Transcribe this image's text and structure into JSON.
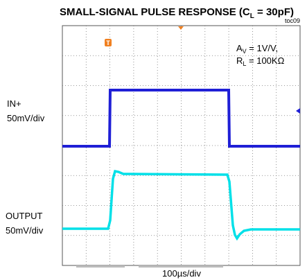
{
  "title": {
    "prefix": "SMALL-SIGNAL PULSE RESPONSE (C",
    "sub": "L",
    "suffix": " = 30pF)"
  },
  "figure_id": "toc09",
  "annotation": {
    "line1": {
      "main": "A",
      "sub": "V",
      "rest": " = 1V/V,"
    },
    "line2": {
      "main": "R",
      "sub": "L",
      "rest": " = 100KΩ"
    }
  },
  "trigger_marker": "T",
  "channels": [
    {
      "name": "IN+",
      "scale": "50mV/div"
    },
    {
      "name": "OUTPUT",
      "scale": "50mV/div"
    }
  ],
  "timebase": "100µs/div"
}
